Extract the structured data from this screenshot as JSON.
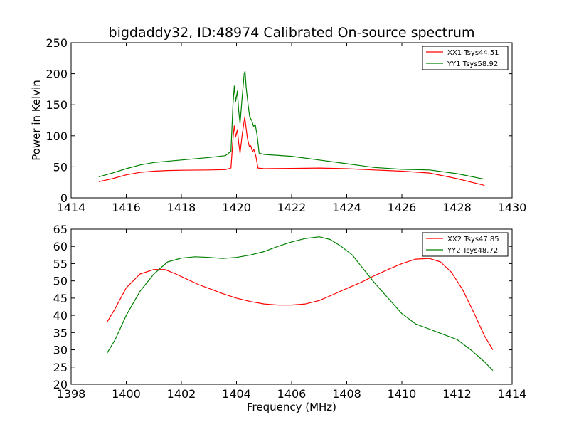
{
  "figure_title": "bigdaddy32, ID:48974 Calibrated On-source spectrum",
  "x_axis_label": "Frequency (MHz)",
  "chart_data": [
    {
      "type": "line",
      "title": "bigdaddy32, ID:48974 Calibrated On-source spectrum",
      "xlabel": "",
      "ylabel": "Power in Kelvin",
      "xlim": [
        1414,
        1430
      ],
      "ylim": [
        0,
        250
      ],
      "xticks": [
        "1414",
        "1416",
        "1418",
        "1420",
        "1422",
        "1424",
        "1426",
        "1428",
        "1430"
      ],
      "yticks": [
        "0",
        "50",
        "100",
        "150",
        "200",
        "250"
      ],
      "grid": false,
      "legend": "top-right",
      "series": [
        {
          "name": "XX1 Tsys44.51",
          "color": "#ff0000",
          "points": [
            [
              1415.0,
              26
            ],
            [
              1415.5,
              31
            ],
            [
              1416.0,
              37
            ],
            [
              1416.5,
              41
            ],
            [
              1417.0,
              43
            ],
            [
              1417.5,
              44
            ],
            [
              1418.0,
              44.5
            ],
            [
              1419.0,
              45
            ],
            [
              1419.6,
              45.5
            ],
            [
              1419.8,
              48
            ],
            [
              1419.88,
              100
            ],
            [
              1419.92,
              116
            ],
            [
              1419.97,
              98
            ],
            [
              1420.03,
              110
            ],
            [
              1420.08,
              88
            ],
            [
              1420.13,
              72
            ],
            [
              1420.2,
              100
            ],
            [
              1420.27,
              122
            ],
            [
              1420.3,
              130
            ],
            [
              1420.34,
              115
            ],
            [
              1420.4,
              95
            ],
            [
              1420.47,
              82
            ],
            [
              1420.52,
              84
            ],
            [
              1420.58,
              74
            ],
            [
              1420.63,
              78
            ],
            [
              1420.7,
              68
            ],
            [
              1420.78,
              48
            ],
            [
              1421.0,
              47
            ],
            [
              1422.0,
              47.5
            ],
            [
              1423.0,
              48
            ],
            [
              1424.0,
              47
            ],
            [
              1425.0,
              45
            ],
            [
              1426.0,
              43
            ],
            [
              1427.0,
              40
            ],
            [
              1428.0,
              31
            ],
            [
              1429.0,
              20
            ]
          ]
        },
        {
          "name": "YY1 Tsys58.92",
          "color": "#008000",
          "points": [
            [
              1415.0,
              34
            ],
            [
              1415.5,
              40
            ],
            [
              1416.0,
              47
            ],
            [
              1416.5,
              53
            ],
            [
              1417.0,
              57
            ],
            [
              1418.0,
              61
            ],
            [
              1419.0,
              65
            ],
            [
              1419.6,
              68
            ],
            [
              1419.8,
              75
            ],
            [
              1419.87,
              150
            ],
            [
              1419.92,
              180
            ],
            [
              1419.97,
              155
            ],
            [
              1420.03,
              172
            ],
            [
              1420.08,
              140
            ],
            [
              1420.13,
              120
            ],
            [
              1420.2,
              160
            ],
            [
              1420.28,
              200
            ],
            [
              1420.31,
              204
            ],
            [
              1420.35,
              178
            ],
            [
              1420.42,
              150
            ],
            [
              1420.48,
              130
            ],
            [
              1420.55,
              125
            ],
            [
              1420.62,
              115
            ],
            [
              1420.68,
              118
            ],
            [
              1420.75,
              100
            ],
            [
              1420.82,
              72
            ],
            [
              1421.0,
              70
            ],
            [
              1422.0,
              67
            ],
            [
              1423.0,
              61
            ],
            [
              1424.0,
              55
            ],
            [
              1425.0,
              49
            ],
            [
              1426.0,
              46
            ],
            [
              1427.0,
              45
            ],
            [
              1428.0,
              39
            ],
            [
              1429.0,
              30
            ]
          ]
        }
      ]
    },
    {
      "type": "line",
      "title": "",
      "xlabel": "Frequency (MHz)",
      "ylabel": "",
      "xlim": [
        1398,
        1414
      ],
      "ylim": [
        20,
        65
      ],
      "xticks": [
        "1398",
        "1400",
        "1402",
        "1404",
        "1406",
        "1408",
        "1410",
        "1412",
        "1414"
      ],
      "yticks": [
        "20",
        "25",
        "30",
        "35",
        "40",
        "45",
        "50",
        "55",
        "60",
        "65"
      ],
      "grid": false,
      "legend": "top-right",
      "series": [
        {
          "name": "XX2 Tsys47.85",
          "color": "#ff0000",
          "points": [
            [
              1399.3,
              38
            ],
            [
              1399.6,
              42
            ],
            [
              1400.0,
              48
            ],
            [
              1400.5,
              52
            ],
            [
              1401.0,
              53.3
            ],
            [
              1401.4,
              53.3
            ],
            [
              1401.8,
              52
            ],
            [
              1402.2,
              50.5
            ],
            [
              1402.6,
              49
            ],
            [
              1403.0,
              47.8
            ],
            [
              1403.5,
              46.3
            ],
            [
              1404.0,
              45
            ],
            [
              1404.5,
              44
            ],
            [
              1405.0,
              43.3
            ],
            [
              1405.5,
              43
            ],
            [
              1406.0,
              43
            ],
            [
              1406.5,
              43.3
            ],
            [
              1407.0,
              44.3
            ],
            [
              1407.5,
              46
            ],
            [
              1408.0,
              47.8
            ],
            [
              1408.5,
              49.5
            ],
            [
              1409.0,
              51.5
            ],
            [
              1409.5,
              53.3
            ],
            [
              1410.0,
              55
            ],
            [
              1410.5,
              56.3
            ],
            [
              1411.0,
              56.5
            ],
            [
              1411.4,
              55.5
            ],
            [
              1411.8,
              52.5
            ],
            [
              1412.2,
              47.5
            ],
            [
              1412.6,
              41
            ],
            [
              1413.0,
              34
            ],
            [
              1413.3,
              30
            ]
          ]
        },
        {
          "name": "YY2 Tsys48.72",
          "color": "#008000",
          "points": [
            [
              1399.3,
              29
            ],
            [
              1399.6,
              33
            ],
            [
              1400.0,
              40
            ],
            [
              1400.5,
              47
            ],
            [
              1401.0,
              52
            ],
            [
              1401.5,
              55.5
            ],
            [
              1402.0,
              56.6
            ],
            [
              1402.5,
              57
            ],
            [
              1403.0,
              56.8
            ],
            [
              1403.5,
              56.5
            ],
            [
              1404.0,
              56.8
            ],
            [
              1404.5,
              57.5
            ],
            [
              1405.0,
              58.5
            ],
            [
              1405.5,
              60
            ],
            [
              1406.0,
              61.3
            ],
            [
              1406.5,
              62.3
            ],
            [
              1407.0,
              62.8
            ],
            [
              1407.4,
              62
            ],
            [
              1407.8,
              60
            ],
            [
              1408.2,
              57.5
            ],
            [
              1408.6,
              53.5
            ],
            [
              1409.0,
              49.5
            ],
            [
              1409.5,
              45
            ],
            [
              1410.0,
              40.5
            ],
            [
              1410.5,
              37.5
            ],
            [
              1411.0,
              36
            ],
            [
              1411.5,
              34.5
            ],
            [
              1412.0,
              33
            ],
            [
              1412.5,
              30
            ],
            [
              1413.0,
              26.5
            ],
            [
              1413.3,
              24
            ]
          ]
        }
      ]
    }
  ]
}
